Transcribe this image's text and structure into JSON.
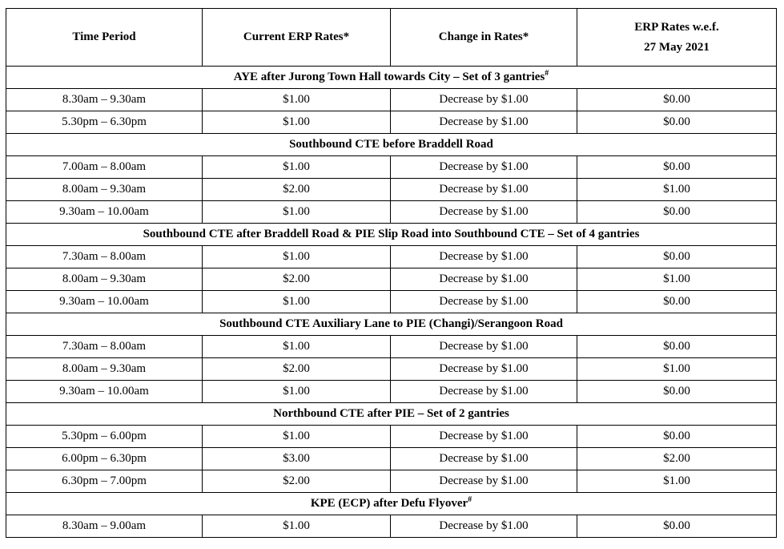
{
  "table": {
    "headers": {
      "time_period": "Time Period",
      "current_rates": "Current ERP Rates*",
      "change_in_rates": "Change in Rates*",
      "new_rates_line1": "ERP Rates w.e.f.",
      "new_rates_line2": "27 May 2021"
    },
    "sections": [
      {
        "title": "AYE after Jurong Town Hall towards City – Set of 3 gantries",
        "marker": "#",
        "rows": [
          [
            "8.30am – 9.30am",
            "$1.00",
            "Decrease by $1.00",
            "$0.00"
          ],
          [
            "5.30pm – 6.30pm",
            "$1.00",
            "Decrease by $1.00",
            "$0.00"
          ]
        ]
      },
      {
        "title": "Southbound CTE before Braddell Road",
        "marker": "",
        "rows": [
          [
            "7.00am – 8.00am",
            "$1.00",
            "Decrease by $1.00",
            "$0.00"
          ],
          [
            "8.00am – 9.30am",
            "$2.00",
            "Decrease by $1.00",
            "$1.00"
          ],
          [
            "9.30am – 10.00am",
            "$1.00",
            "Decrease by $1.00",
            "$0.00"
          ]
        ]
      },
      {
        "title": "Southbound CTE after Braddell Road & PIE Slip Road into Southbound CTE – Set of 4 gantries",
        "marker": "",
        "rows": [
          [
            "7.30am – 8.00am",
            "$1.00",
            "Decrease by $1.00",
            "$0.00"
          ],
          [
            "8.00am – 9.30am",
            "$2.00",
            "Decrease by $1.00",
            "$1.00"
          ],
          [
            "9.30am – 10.00am",
            "$1.00",
            "Decrease by $1.00",
            "$0.00"
          ]
        ]
      },
      {
        "title": "Southbound CTE Auxiliary Lane to PIE (Changi)/Serangoon Road",
        "marker": "",
        "rows": [
          [
            "7.30am – 8.00am",
            "$1.00",
            "Decrease by $1.00",
            "$0.00"
          ],
          [
            "8.00am – 9.30am",
            "$2.00",
            "Decrease by $1.00",
            "$1.00"
          ],
          [
            "9.30am – 10.00am",
            "$1.00",
            "Decrease by $1.00",
            "$0.00"
          ]
        ]
      },
      {
        "title": "Northbound CTE after PIE – Set of 2 gantries",
        "marker": "",
        "rows": [
          [
            "5.30pm – 6.00pm",
            "$1.00",
            "Decrease by $1.00",
            "$0.00"
          ],
          [
            "6.00pm – 6.30pm",
            "$3.00",
            "Decrease by $1.00",
            "$2.00"
          ],
          [
            "6.30pm – 7.00pm",
            "$2.00",
            "Decrease by $1.00",
            "$1.00"
          ]
        ]
      },
      {
        "title": "KPE (ECP) after Defu Flyover",
        "marker": "#",
        "rows": [
          [
            "8.30am – 9.00am",
            "$1.00",
            "Decrease by $1.00",
            "$0.00"
          ]
        ]
      }
    ]
  }
}
